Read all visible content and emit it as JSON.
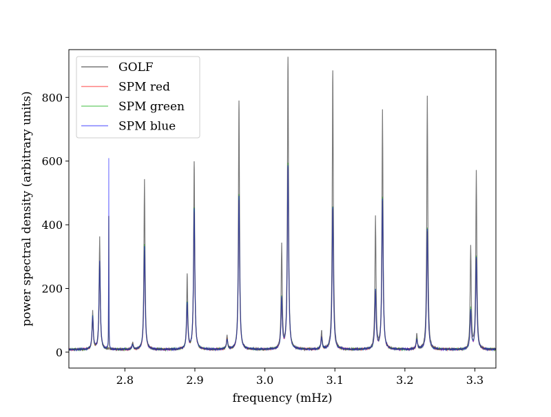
{
  "chart_data": {
    "type": "line",
    "title": "",
    "xlabel": "frequency (mHz)",
    "ylabel": "power spectral density (arbitrary units)",
    "xlim": [
      2.72,
      3.33
    ],
    "ylim": [
      -50,
      950
    ],
    "xticks": [
      2.8,
      2.9,
      3.0,
      3.1,
      3.2,
      3.3
    ],
    "xtick_labels": [
      "2.8",
      "2.9",
      "3.0",
      "3.1",
      "3.2",
      "3.3"
    ],
    "yticks": [
      0,
      200,
      400,
      600,
      800
    ],
    "ytick_labels": [
      "0",
      "200",
      "400",
      "600",
      "800"
    ],
    "grid": false,
    "legend_position": "top-left",
    "background_level": 8,
    "series": [
      {
        "name": "GOLF",
        "color": "#555555",
        "opacity": 0.8
      },
      {
        "name": "SPM red",
        "color": "#ff0000",
        "opacity": 0.5
      },
      {
        "name": "SPM green",
        "color": "#00aa00",
        "opacity": 0.5
      },
      {
        "name": "SPM blue",
        "color": "#0000ff",
        "opacity": 0.5
      }
    ],
    "peaks": [
      {
        "freq": 2.754,
        "golf": 130,
        "spm_red": 105,
        "spm_green": 110,
        "spm_blue": 110
      },
      {
        "freq": 2.764,
        "golf": 360,
        "spm_red": 280,
        "spm_green": 285,
        "spm_blue": 285
      },
      {
        "freq": 2.777,
        "golf": 10,
        "spm_red": 425,
        "spm_green": 425,
        "spm_blue": 605
      },
      {
        "freq": 2.811,
        "golf": 30,
        "spm_red": 25,
        "spm_green": 25,
        "spm_blue": 25
      },
      {
        "freq": 2.828,
        "golf": 540,
        "spm_red": 320,
        "spm_green": 340,
        "spm_blue": 330
      },
      {
        "freq": 2.889,
        "golf": 240,
        "spm_red": 145,
        "spm_green": 155,
        "spm_blue": 150
      },
      {
        "freq": 2.899,
        "golf": 597,
        "spm_red": 440,
        "spm_green": 455,
        "spm_blue": 450
      },
      {
        "freq": 2.946,
        "golf": 50,
        "spm_red": 40,
        "spm_green": 40,
        "spm_blue": 40
      },
      {
        "freq": 2.963,
        "golf": 790,
        "spm_red": 480,
        "spm_green": 495,
        "spm_blue": 490
      },
      {
        "freq": 3.024,
        "golf": 335,
        "spm_red": 160,
        "spm_green": 170,
        "spm_blue": 165
      },
      {
        "freq": 3.033,
        "golf": 925,
        "spm_red": 580,
        "spm_green": 590,
        "spm_blue": 585
      },
      {
        "freq": 3.081,
        "golf": 65,
        "spm_red": 45,
        "spm_green": 45,
        "spm_blue": 45
      },
      {
        "freq": 3.097,
        "golf": 885,
        "spm_red": 450,
        "spm_green": 460,
        "spm_blue": 455
      },
      {
        "freq": 3.158,
        "golf": 420,
        "spm_red": 185,
        "spm_green": 190,
        "spm_blue": 190
      },
      {
        "freq": 3.168,
        "golf": 757,
        "spm_red": 475,
        "spm_green": 485,
        "spm_blue": 480
      },
      {
        "freq": 3.217,
        "golf": 55,
        "spm_red": 40,
        "spm_green": 40,
        "spm_blue": 40
      },
      {
        "freq": 3.232,
        "golf": 805,
        "spm_red": 380,
        "spm_green": 390,
        "spm_blue": 385
      },
      {
        "freq": 3.294,
        "golf": 330,
        "spm_red": 125,
        "spm_green": 135,
        "spm_blue": 130
      },
      {
        "freq": 3.302,
        "golf": 565,
        "spm_red": 290,
        "spm_green": 300,
        "spm_blue": 295
      }
    ]
  }
}
